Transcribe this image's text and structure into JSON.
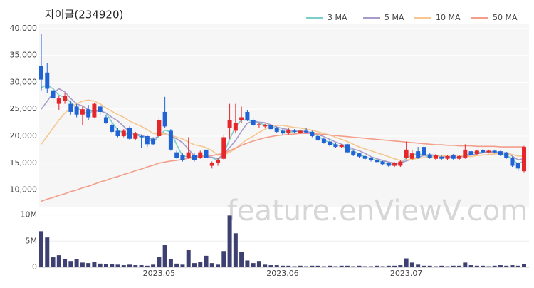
{
  "watermark": "feature.enViewV.com",
  "chart_data": [
    {
      "type": "candlestick",
      "title": "자이글(234920)",
      "up_color": "#e5262b",
      "down_color": "#1f63d4",
      "open": [
        33000,
        31800,
        28500,
        26000,
        26500,
        26000,
        25500,
        24000,
        25000,
        23500,
        25500,
        23500,
        22000,
        21000,
        20000,
        21500,
        19500,
        20000,
        20000,
        19500,
        20000,
        24500,
        21000,
        17000,
        16500,
        16000,
        16500,
        16000,
        17500,
        14500,
        15000,
        15800,
        21500,
        21000,
        23000,
        24500,
        23000,
        22000,
        21800,
        22000,
        21500,
        21000,
        20500,
        21000,
        20600,
        21000,
        20800,
        20000,
        19500,
        19000,
        18500,
        18000,
        18500,
        17200,
        16800,
        16300,
        16000,
        15600,
        15300,
        15000,
        14500,
        14500,
        16000,
        15800,
        17200,
        18000,
        16500,
        15800,
        16200,
        15800,
        16500,
        15800,
        16000,
        17200,
        16700,
        17400,
        17000,
        17300,
        17200,
        17000,
        16000,
        15000,
        13500
      ],
      "high": [
        39000,
        33500,
        29000,
        27500,
        28000,
        26500,
        26000,
        25500,
        25800,
        26200,
        25800,
        24000,
        22300,
        21500,
        21300,
        21800,
        20800,
        20300,
        20200,
        19800,
        23500,
        27300,
        21300,
        17300,
        16800,
        19800,
        16800,
        17300,
        18300,
        15300,
        16000,
        20300,
        26000,
        26000,
        25500,
        24800,
        23300,
        22500,
        22300,
        22200,
        21700,
        21300,
        21500,
        21300,
        21200,
        21500,
        21000,
        20200,
        19700,
        19200,
        18700,
        18500,
        18600,
        17300,
        16900,
        16400,
        16100,
        15700,
        15400,
        15100,
        15200,
        15500,
        19000,
        17500,
        18000,
        18200,
        16800,
        16700,
        16400,
        16500,
        16700,
        16500,
        18500,
        17400,
        17500,
        17600,
        17500,
        17500,
        17300,
        17100,
        16200,
        15200,
        18200
      ],
      "low": [
        28500,
        28000,
        26000,
        24800,
        26000,
        24000,
        23500,
        22000,
        23000,
        23300,
        24000,
        22300,
        20500,
        19800,
        19800,
        19300,
        19200,
        17800,
        18000,
        18300,
        19800,
        21500,
        17300,
        15800,
        15300,
        15800,
        15300,
        15800,
        15800,
        14000,
        14500,
        15500,
        19500,
        20500,
        22500,
        22800,
        21800,
        21500,
        21500,
        21000,
        20600,
        20300,
        20300,
        20500,
        20400,
        20500,
        19800,
        19000,
        18600,
        18100,
        17800,
        17800,
        16800,
        16300,
        16000,
        15600,
        15300,
        15000,
        14600,
        14300,
        14300,
        14300,
        15800,
        15600,
        15800,
        16300,
        15800,
        15600,
        15600,
        15600,
        15600,
        15600,
        15800,
        16300,
        16500,
        16800,
        16800,
        16800,
        16300,
        15800,
        14300,
        13500,
        13300
      ],
      "close": [
        30500,
        28800,
        27000,
        27000,
        27500,
        24500,
        24000,
        25000,
        23500,
        26000,
        24500,
        22500,
        20800,
        20000,
        21000,
        19500,
        20500,
        19800,
        18500,
        18500,
        23000,
        21800,
        17500,
        16000,
        15500,
        17000,
        15500,
        17000,
        16000,
        15000,
        15500,
        19800,
        23000,
        22500,
        23500,
        23000,
        22000,
        22200,
        22000,
        21300,
        20800,
        20500,
        21200,
        20800,
        21000,
        20700,
        20000,
        19200,
        18800,
        18300,
        18000,
        18300,
        17000,
        16500,
        16200,
        15800,
        15500,
        15200,
        14800,
        14500,
        15000,
        15300,
        17500,
        16800,
        16000,
        16500,
        16000,
        16500,
        15800,
        16300,
        15800,
        16300,
        17500,
        16500,
        17300,
        17000,
        17300,
        17000,
        16500,
        16000,
        14500,
        14000,
        18000
      ],
      "series": [
        {
          "name": "3 MA",
          "color": "#7ccfc9",
          "values": [
            29000,
            29500,
            28800,
            27600,
            27200,
            26300,
            25300,
            24500,
            24200,
            24800,
            24700,
            24300,
            22600,
            21100,
            20600,
            20200,
            20300,
            19900,
            19600,
            18900,
            20000,
            21100,
            20800,
            18400,
            16300,
            16200,
            16000,
            16500,
            16200,
            16000,
            15500,
            16800,
            19400,
            21800,
            23000,
            23000,
            22800,
            22400,
            22100,
            21800,
            21400,
            20900,
            20800,
            20800,
            21000,
            20800,
            20600,
            20000,
            19300,
            18800,
            18400,
            18200,
            17800,
            17300,
            16600,
            16200,
            15800,
            15500,
            15200,
            14800,
            14800,
            14900,
            15900,
            16500,
            16800,
            16400,
            16200,
            16300,
            16100,
            16200,
            16000,
            16100,
            16500,
            16800,
            17100,
            16900,
            17200,
            17100,
            16900,
            16500,
            15700,
            14800,
            15500
          ]
        },
        {
          "name": "5 MA",
          "color": "#a89bc9",
          "values": [
            25000,
            26500,
            28000,
            28800,
            28200,
            27000,
            26000,
            25600,
            24900,
            24600,
            24700,
            24300,
            23500,
            22800,
            21800,
            20800,
            20400,
            20200,
            19700,
            19400,
            20100,
            20500,
            20000,
            19500,
            18800,
            17600,
            16300,
            16200,
            16200,
            16100,
            15800,
            16700,
            17900,
            19200,
            20900,
            22400,
            22800,
            22600,
            22500,
            22100,
            21700,
            21400,
            21200,
            20900,
            20900,
            20800,
            20700,
            20300,
            19900,
            19400,
            18900,
            18500,
            18100,
            17600,
            17300,
            16800,
            16200,
            15800,
            15500,
            15200,
            15000,
            15000,
            15400,
            15800,
            16100,
            16400,
            16600,
            16400,
            16200,
            16200,
            16100,
            16100,
            16300,
            16500,
            16700,
            16900,
            17100,
            17000,
            17000,
            16800,
            16300,
            15600,
            15800
          ]
        },
        {
          "name": "10 MA",
          "color": "#f5c78e",
          "values": [
            18500,
            20000,
            21500,
            23000,
            24300,
            25300,
            26000,
            26500,
            26700,
            26500,
            26000,
            25200,
            24600,
            24000,
            23500,
            22800,
            22300,
            21800,
            21200,
            20500,
            20400,
            20400,
            20200,
            19800,
            19500,
            18900,
            18400,
            18200,
            17900,
            17300,
            16500,
            16500,
            17000,
            17700,
            18600,
            19400,
            20000,
            20700,
            21300,
            21900,
            22000,
            22000,
            21800,
            21600,
            21500,
            21300,
            21100,
            20800,
            20500,
            20200,
            19800,
            19400,
            19000,
            18500,
            18000,
            17600,
            17300,
            16900,
            16600,
            16200,
            15800,
            15500,
            15600,
            15700,
            15900,
            16000,
            16100,
            16200,
            16300,
            16400,
            16500,
            16400,
            16300,
            16200,
            16400,
            16500,
            16600,
            16700,
            16800,
            16800,
            16600,
            16300,
            16300
          ]
        },
        {
          "name": "50 MA",
          "color": "#f39d8a",
          "values": [
            7900,
            8300,
            8600,
            9000,
            9300,
            9700,
            10000,
            10400,
            10700,
            11100,
            11500,
            11800,
            12200,
            12500,
            12900,
            13200,
            13600,
            13900,
            14300,
            14600,
            15000,
            15200,
            15400,
            15500,
            15700,
            15900,
            16000,
            16200,
            16300,
            16400,
            16600,
            16800,
            17300,
            17800,
            18300,
            18700,
            19100,
            19400,
            19700,
            19900,
            20100,
            20200,
            20300,
            20400,
            20500,
            20500,
            20500,
            20400,
            20300,
            20200,
            20100,
            20000,
            19900,
            19800,
            19700,
            19600,
            19500,
            19400,
            19300,
            19200,
            19100,
            19000,
            18900,
            18800,
            18700,
            18600,
            18500,
            18400,
            18400,
            18300,
            18300,
            18200,
            18200,
            18200,
            18100,
            18100,
            18100,
            18100,
            18000,
            18000,
            18000,
            18000,
            18000
          ]
        }
      ],
      "ylim": [
        6900,
        40900
      ],
      "yticks": [
        {
          "value": 10000,
          "label": "10,000"
        },
        {
          "value": 15000,
          "label": "15,000"
        },
        {
          "value": 20000,
          "label": "20,000"
        },
        {
          "value": 25000,
          "label": "25,000"
        },
        {
          "value": 30000,
          "label": "30,000"
        },
        {
          "value": 35000,
          "label": "35,000"
        },
        {
          "value": 40000,
          "label": "40,000"
        }
      ],
      "grid": true,
      "legend": "top-right"
    },
    {
      "type": "bar",
      "color": "#3d4070",
      "categories": [
        null,
        null,
        null,
        null,
        null,
        null,
        null,
        null,
        null,
        null,
        null,
        null,
        null,
        null,
        null,
        null,
        null,
        null,
        null,
        null,
        "2023.05",
        null,
        null,
        null,
        null,
        null,
        null,
        null,
        null,
        null,
        null,
        null,
        null,
        null,
        null,
        null,
        null,
        null,
        null,
        null,
        null,
        "2023.06",
        null,
        null,
        null,
        null,
        null,
        null,
        null,
        null,
        null,
        null,
        null,
        null,
        null,
        null,
        null,
        null,
        null,
        null,
        null,
        null,
        "2023.07",
        null,
        null,
        null,
        null,
        null,
        null,
        null,
        null,
        null,
        null,
        null,
        null,
        null,
        null,
        null,
        null,
        null,
        null,
        null,
        null
      ],
      "values": [
        6900000,
        5700000,
        1900000,
        2300000,
        1500000,
        1200000,
        1600000,
        900000,
        800000,
        1000000,
        700000,
        600000,
        600000,
        500000,
        400000,
        500000,
        400000,
        400000,
        300000,
        500000,
        2000000,
        4300000,
        1500000,
        700000,
        500000,
        3300000,
        800000,
        1000000,
        2200000,
        800000,
        500000,
        3100000,
        9900000,
        6500000,
        3000000,
        1300000,
        800000,
        1200000,
        500000,
        400000,
        400000,
        300000,
        300000,
        200000,
        300000,
        200000,
        300000,
        300000,
        200000,
        300000,
        200000,
        300000,
        300000,
        200000,
        300000,
        200000,
        200000,
        300000,
        200000,
        300000,
        300000,
        400000,
        1700000,
        900000,
        500000,
        300000,
        300000,
        200000,
        300000,
        200000,
        300000,
        300000,
        900000,
        400000,
        300000,
        300000,
        200000,
        300000,
        400000,
        300000,
        400000,
        300000,
        600000
      ],
      "ylim": [
        0,
        10900000
      ],
      "yticks": [
        0,
        {
          "value": 5000000,
          "label": "5M"
        },
        {
          "value": 10000000,
          "label": "10M"
        }
      ],
      "grid": true
    }
  ]
}
